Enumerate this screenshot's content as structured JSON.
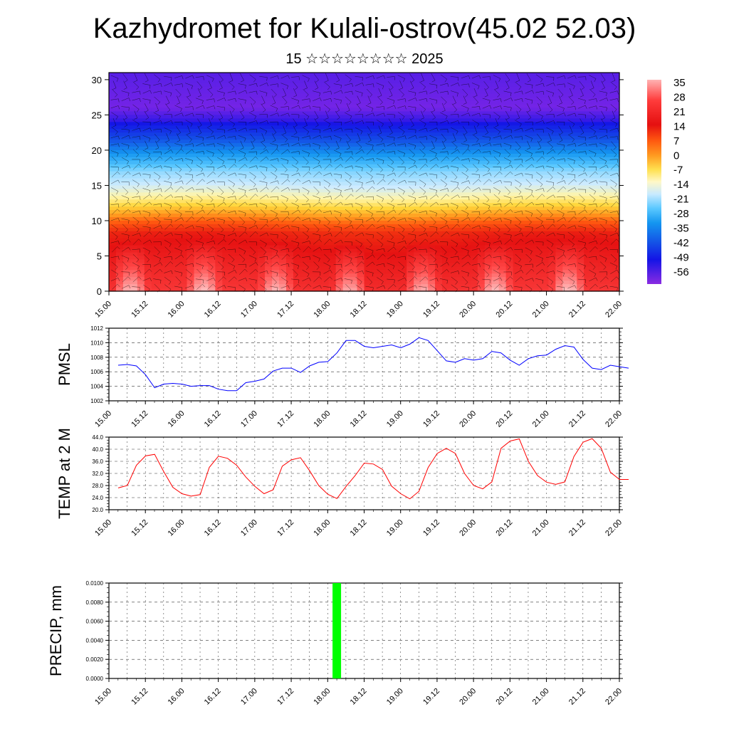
{
  "title": "Kazhydromet for Kulali-ostrov(45.02 52.03)",
  "subtitle": "15 ☆☆☆☆☆☆☆☆ 2025",
  "time_labels": [
    "15.00",
    "15.12",
    "16.00",
    "16.12",
    "17.00",
    "17.12",
    "18.00",
    "18.12",
    "19.00",
    "19.12",
    "20.00",
    "20.12",
    "21.00",
    "21.12",
    "22.00"
  ],
  "colors": {
    "pmsl_line": "#0000ff",
    "temp_line": "#ff0000",
    "precip_bar": "#00ff00"
  },
  "chart_data": [
    {
      "type": "heatmap",
      "name": "temperature-wind-cross-section",
      "x_ticks": [
        "15.00",
        "15.12",
        "16.00",
        "16.12",
        "17.00",
        "17.12",
        "18.00",
        "18.12",
        "19.00",
        "19.12",
        "20.00",
        "20.12",
        "21.00",
        "21.12",
        "22.00"
      ],
      "y_ticks": [
        "0",
        "5",
        "10",
        "15",
        "20",
        "25",
        "30"
      ],
      "ylim": [
        0,
        31
      ],
      "colorbar_labels": [
        "35",
        "28",
        "21",
        "14",
        "7",
        "0",
        "-7",
        "-14",
        "-21",
        "-28",
        "-35",
        "-42",
        "-49",
        "-56"
      ],
      "colorbar_range": [
        -60,
        38
      ],
      "wind_barbs": true
    },
    {
      "type": "line",
      "name": "pmsl",
      "ylabel": "PMSL",
      "ylim": [
        1002,
        1012
      ],
      "y_ticks": [
        "1012",
        "1010",
        "1008",
        "1006",
        "1004",
        "1002"
      ],
      "x_ticks": [
        "15.00",
        "15.12",
        "16.00",
        "16.12",
        "17.00",
        "17.12",
        "18.00",
        "18.12",
        "19.00",
        "19.12",
        "20.00",
        "20.12",
        "21.00",
        "21.12",
        "22.00"
      ],
      "x_step_hours": 3,
      "values": [
        1006.9,
        1007.0,
        1006.8,
        1005.6,
        1003.8,
        1004.3,
        1004.4,
        1004.3,
        1004.0,
        1004.1,
        1004.1,
        1003.6,
        1003.4,
        1003.4,
        1004.5,
        1004.7,
        1005.0,
        1006.1,
        1006.5,
        1006.5,
        1005.9,
        1006.8,
        1007.3,
        1007.4,
        1008.6,
        1010.3,
        1010.3,
        1009.5,
        1009.3,
        1009.5,
        1009.7,
        1009.3,
        1009.8,
        1010.7,
        1010.3,
        1008.9,
        1007.5,
        1007.3,
        1007.8,
        1007.6,
        1007.8,
        1008.8,
        1008.6,
        1007.6,
        1006.9,
        1007.8,
        1008.2,
        1008.3,
        1009.1,
        1009.6,
        1009.4,
        1007.7,
        1006.5,
        1006.3,
        1006.9,
        1006.7,
        1006.5
      ]
    },
    {
      "type": "line",
      "name": "temp-2m",
      "ylabel": "TEMP at 2 M",
      "ylim": [
        20,
        44
      ],
      "y_ticks": [
        "44.0",
        "40.0",
        "36.0",
        "32.0",
        "28.0",
        "24.0",
        "20.0"
      ],
      "x_ticks": [
        "15.00",
        "15.12",
        "16.00",
        "16.12",
        "17.00",
        "17.12",
        "18.00",
        "18.12",
        "19.00",
        "19.12",
        "20.00",
        "20.12",
        "21.00",
        "21.12",
        "22.00"
      ],
      "x_step_hours": 3,
      "values": [
        27.2,
        28.0,
        34.7,
        37.8,
        38.3,
        32.6,
        27.4,
        25.3,
        24.5,
        25.0,
        34.0,
        37.7,
        37.0,
        34.7,
        30.8,
        27.7,
        25.3,
        26.6,
        34.4,
        36.5,
        37.2,
        32.9,
        28.0,
        25.1,
        23.7,
        27.7,
        31.3,
        35.4,
        35.1,
        33.3,
        27.8,
        25.3,
        23.6,
        26.1,
        33.9,
        38.6,
        40.3,
        38.6,
        32.0,
        28.0,
        26.9,
        29.2,
        40.3,
        42.7,
        43.4,
        36.0,
        31.3,
        29.1,
        28.4,
        29.2,
        37.6,
        42.3,
        43.5,
        40.3,
        32.4,
        30.0,
        30.0
      ]
    },
    {
      "type": "bar",
      "name": "precip",
      "ylabel": "PRECIP, mm",
      "ylim": [
        0,
        0.01
      ],
      "y_ticks": [
        "0.0100",
        "0.0080",
        "0.0060",
        "0.0040",
        "0.0020",
        "0.0000"
      ],
      "x_ticks": [
        "15.00",
        "15.12",
        "16.00",
        "16.12",
        "17.00",
        "17.12",
        "18.00",
        "18.12",
        "19.00",
        "19.12",
        "20.00",
        "20.12",
        "21.00",
        "21.12",
        "22.00"
      ],
      "bars": [
        {
          "x_hours": 75,
          "value": 0.01
        }
      ]
    }
  ]
}
